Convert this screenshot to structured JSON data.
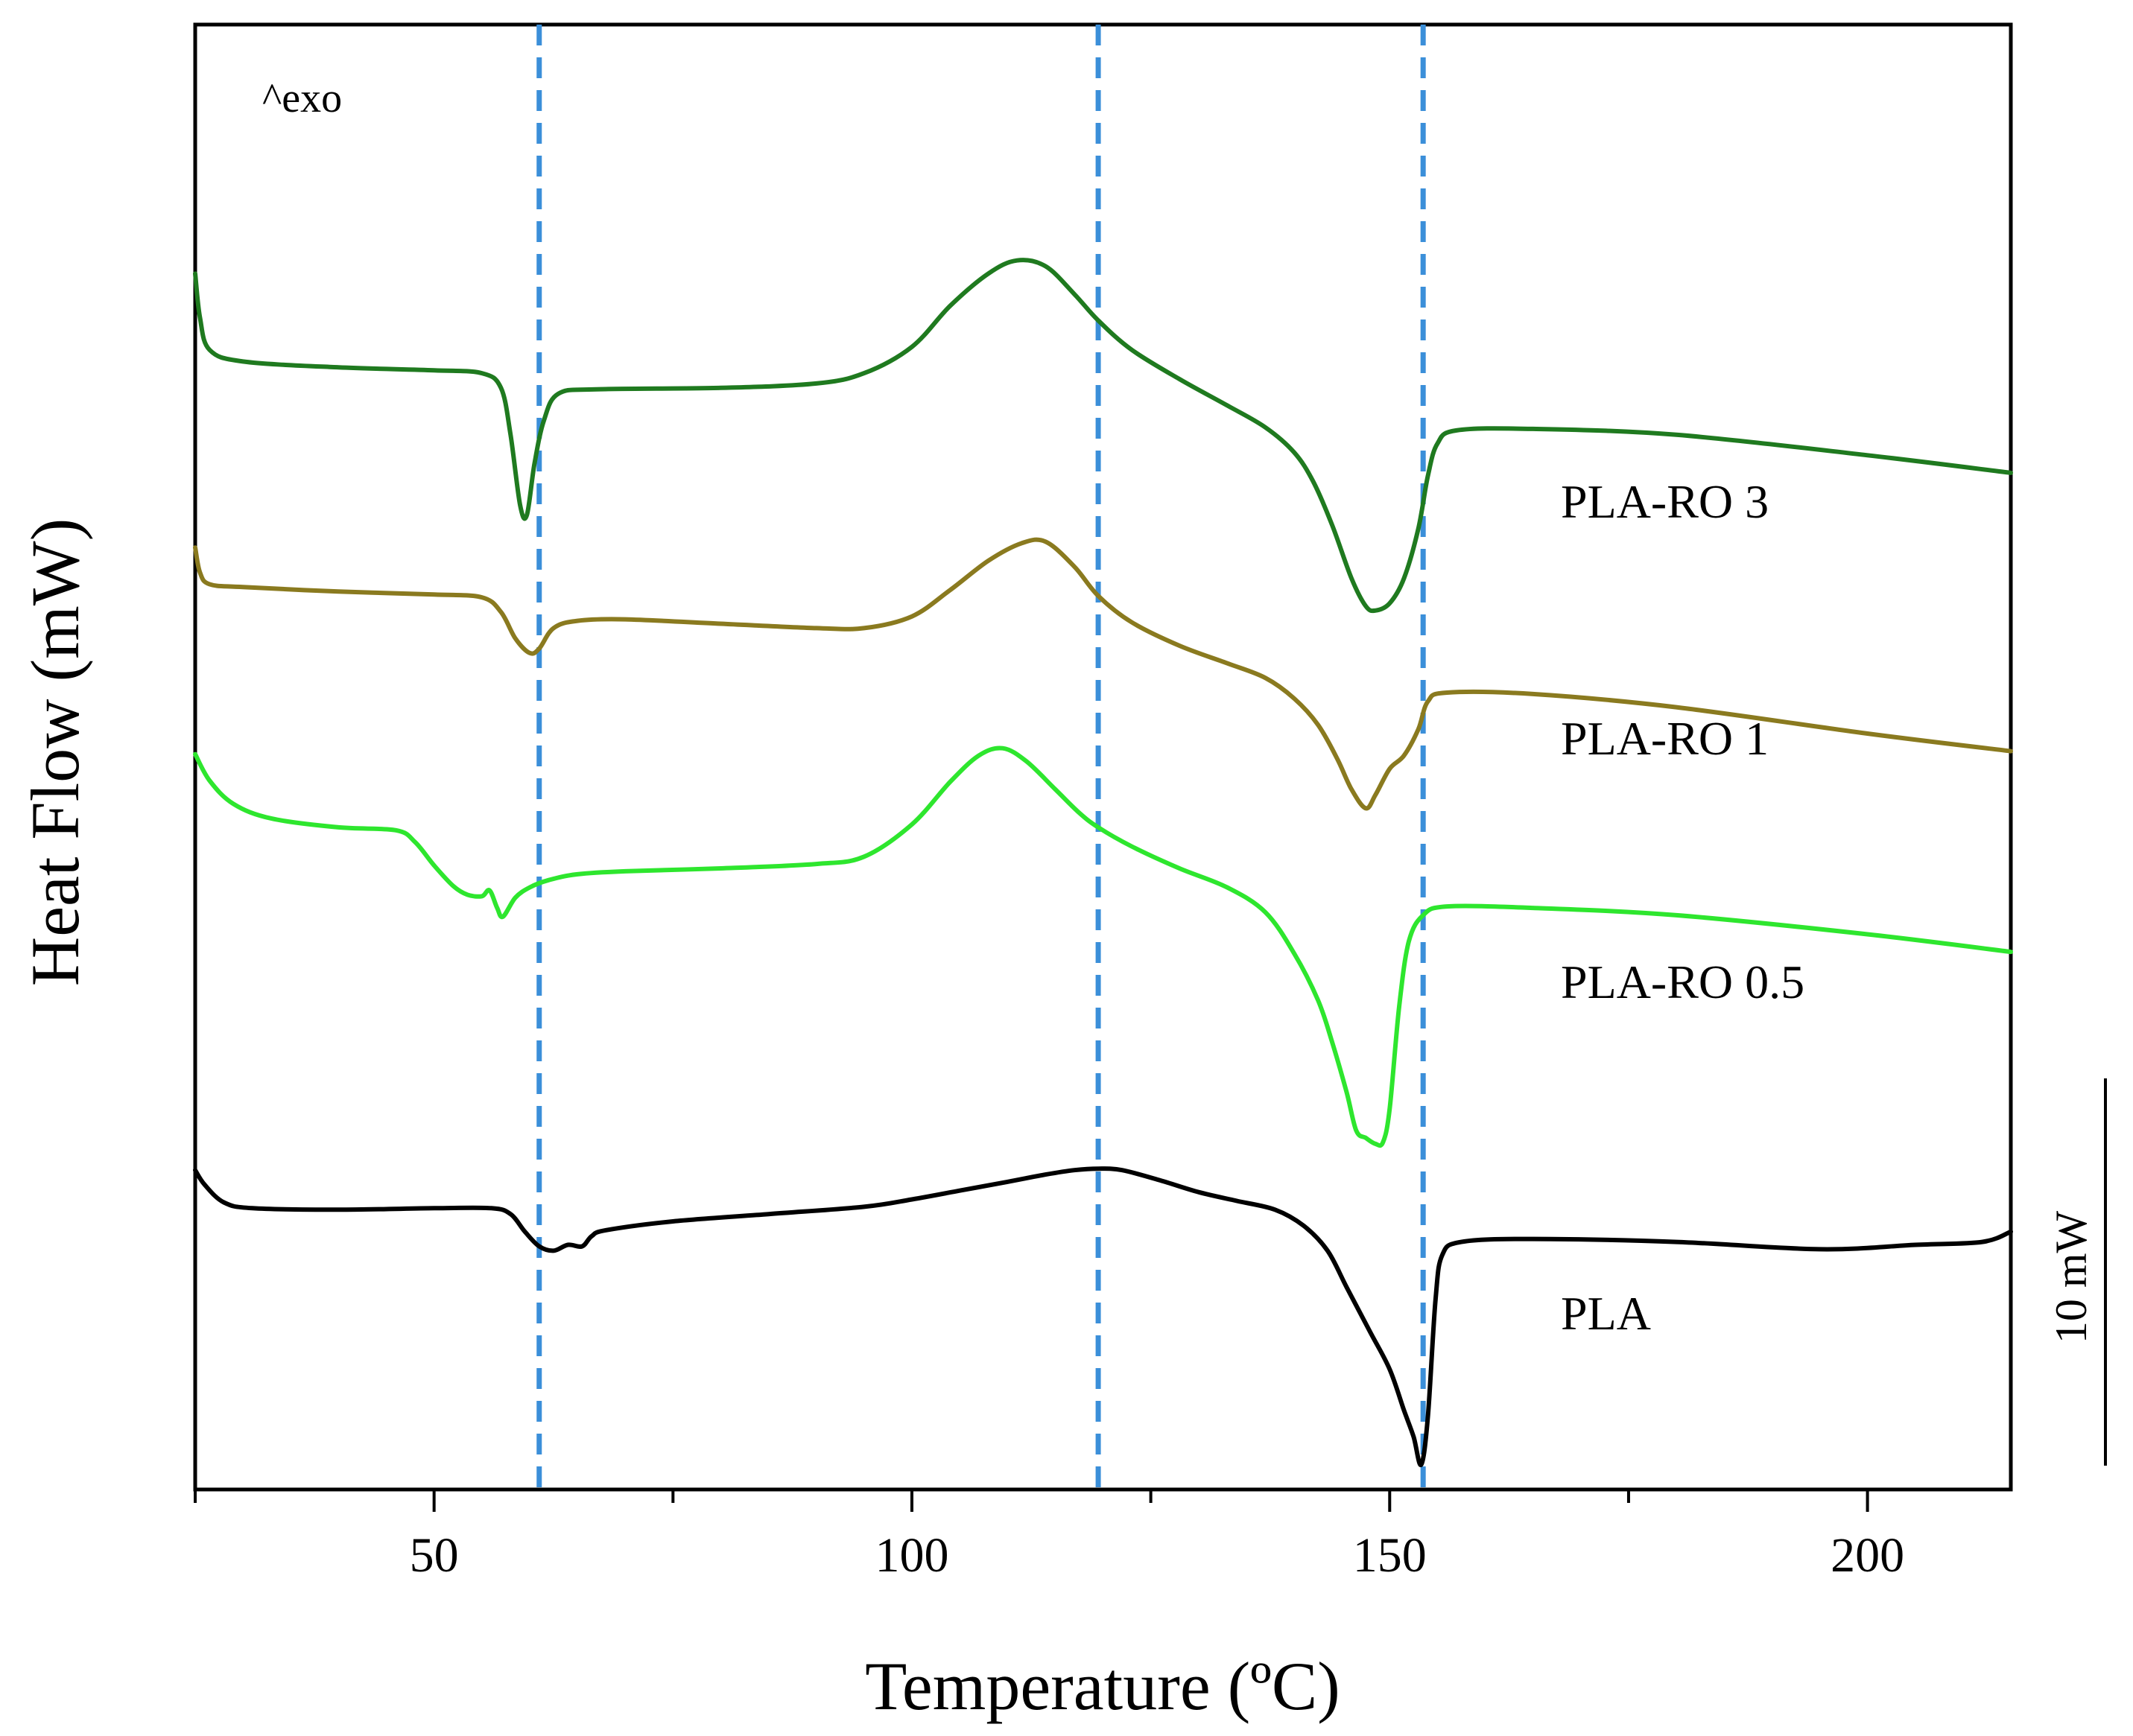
{
  "chart_data": {
    "type": "line",
    "title": "",
    "xlabel": "Temperature (ºC)",
    "ylabel": "Heat Flow (mW)",
    "xlim": [
      25,
      215
    ],
    "ylim": [
      0,
      100
    ],
    "xticks": [
      50,
      100,
      150,
      200
    ],
    "xtick_labels": [
      "50",
      "100",
      "150",
      "200"
    ],
    "annotation_exo": "^exo",
    "scale_bar_label": "10 mW",
    "scale_bar_value_mW": 10,
    "reference_lines_x": [
      61,
      119.5,
      153.5
    ],
    "reference_line_color": "#3b8fd9",
    "series": [
      {
        "name": "PLA-RO 3",
        "label": "PLA-RO 3",
        "color": "#1f7a1f",
        "points": [
          [
            25,
            83.0
          ],
          [
            25.5,
            80.0
          ],
          [
            26.5,
            77.8
          ],
          [
            30,
            77.0
          ],
          [
            40,
            76.6
          ],
          [
            50,
            76.4
          ],
          [
            55,
            76.2
          ],
          [
            57,
            75.2
          ],
          [
            58,
            72.0
          ],
          [
            59,
            67.2
          ],
          [
            59.7,
            66.5
          ],
          [
            60.5,
            70.0
          ],
          [
            61.5,
            73.0
          ],
          [
            63,
            74.8
          ],
          [
            67,
            75.1
          ],
          [
            80,
            75.2
          ],
          [
            90,
            75.5
          ],
          [
            95,
            76.2
          ],
          [
            100,
            78.0
          ],
          [
            104,
            80.8
          ],
          [
            108,
            83.0
          ],
          [
            111,
            83.9
          ],
          [
            114,
            83.5
          ],
          [
            117,
            81.6
          ],
          [
            119.5,
            79.8
          ],
          [
            123,
            77.8
          ],
          [
            128,
            75.8
          ],
          [
            133,
            74.0
          ],
          [
            137,
            72.5
          ],
          [
            140,
            70.8
          ],
          [
            142,
            68.8
          ],
          [
            144,
            65.8
          ],
          [
            146,
            62.2
          ],
          [
            147.5,
            60.3
          ],
          [
            148.5,
            60.0
          ],
          [
            150,
            60.5
          ],
          [
            151.5,
            62.2
          ],
          [
            153,
            65.6
          ],
          [
            154,
            69.2
          ],
          [
            155,
            71.4
          ],
          [
            157,
            72.3
          ],
          [
            165,
            72.4
          ],
          [
            180,
            72.0
          ],
          [
            200,
            70.6
          ],
          [
            215,
            69.4
          ]
        ]
      },
      {
        "name": "PLA-RO 1",
        "label": "PLA-RO 1",
        "color": "#8a7a1f",
        "points": [
          [
            25,
            64.3
          ],
          [
            25.5,
            62.6
          ],
          [
            26.5,
            61.8
          ],
          [
            30,
            61.6
          ],
          [
            40,
            61.3
          ],
          [
            50,
            61.1
          ],
          [
            55,
            60.9
          ],
          [
            57,
            59.9
          ],
          [
            58.5,
            58.1
          ],
          [
            60,
            57.1
          ],
          [
            61,
            57.4
          ],
          [
            62.5,
            58.8
          ],
          [
            65,
            59.3
          ],
          [
            70,
            59.4
          ],
          [
            80,
            59.1
          ],
          [
            90,
            58.8
          ],
          [
            95,
            58.8
          ],
          [
            100,
            59.6
          ],
          [
            104,
            61.4
          ],
          [
            108,
            63.4
          ],
          [
            111.5,
            64.6
          ],
          [
            114,
            64.7
          ],
          [
            117,
            63.0
          ],
          [
            119.5,
            61.0
          ],
          [
            123,
            59.2
          ],
          [
            128,
            57.6
          ],
          [
            133,
            56.4
          ],
          [
            137,
            55.4
          ],
          [
            140,
            54.0
          ],
          [
            142.5,
            52.2
          ],
          [
            144.5,
            49.9
          ],
          [
            146,
            47.8
          ],
          [
            147.5,
            46.5
          ],
          [
            148.5,
            47.4
          ],
          [
            150,
            49.2
          ],
          [
            151.5,
            50.1
          ],
          [
            153,
            51.9
          ],
          [
            154,
            53.8
          ],
          [
            156,
            54.4
          ],
          [
            165,
            54.3
          ],
          [
            180,
            53.4
          ],
          [
            200,
            51.6
          ],
          [
            215,
            50.4
          ]
        ]
      },
      {
        "name": "PLA-RO 0.5",
        "label": "PLA-RO 0.5",
        "color": "#2ee62e",
        "points": [
          [
            25,
            50.2
          ],
          [
            26.5,
            48.4
          ],
          [
            29,
            46.8
          ],
          [
            33,
            45.8
          ],
          [
            40,
            45.2
          ],
          [
            46,
            45.0
          ],
          [
            48,
            44.2
          ],
          [
            50,
            42.6
          ],
          [
            52,
            41.2
          ],
          [
            53.5,
            40.6
          ],
          [
            55,
            40.5
          ],
          [
            55.8,
            40.9
          ],
          [
            56.6,
            39.7
          ],
          [
            57.2,
            39.1
          ],
          [
            58.5,
            40.4
          ],
          [
            60,
            41.1
          ],
          [
            62,
            41.6
          ],
          [
            65,
            42.0
          ],
          [
            70,
            42.2
          ],
          [
            80,
            42.4
          ],
          [
            90,
            42.7
          ],
          [
            95,
            43.2
          ],
          [
            100,
            45.4
          ],
          [
            104,
            48.3
          ],
          [
            107,
            50.1
          ],
          [
            109.5,
            50.6
          ],
          [
            112,
            49.7
          ],
          [
            115,
            47.8
          ],
          [
            117.5,
            46.2
          ],
          [
            119.5,
            45.2
          ],
          [
            123,
            43.9
          ],
          [
            128,
            42.4
          ],
          [
            133,
            41.1
          ],
          [
            137,
            39.4
          ],
          [
            140,
            36.6
          ],
          [
            142.5,
            33.4
          ],
          [
            144,
            30.5
          ],
          [
            145.5,
            27.1
          ],
          [
            146.5,
            24.5
          ],
          [
            147.5,
            24.0
          ],
          [
            148.5,
            23.6
          ],
          [
            149.3,
            23.7
          ],
          [
            150,
            26.0
          ],
          [
            151,
            33.0
          ],
          [
            152,
            37.4
          ],
          [
            153.5,
            39.2
          ],
          [
            156,
            39.8
          ],
          [
            165,
            39.7
          ],
          [
            180,
            39.2
          ],
          [
            200,
            37.9
          ],
          [
            215,
            36.7
          ]
        ]
      },
      {
        "name": "PLA",
        "label": "PLA",
        "color": "#000000",
        "points": [
          [
            25,
            21.8
          ],
          [
            26,
            20.8
          ],
          [
            28,
            19.6
          ],
          [
            31,
            19.2
          ],
          [
            40,
            19.1
          ],
          [
            50,
            19.2
          ],
          [
            56,
            19.2
          ],
          [
            58,
            18.8
          ],
          [
            59.5,
            17.6
          ],
          [
            61,
            16.6
          ],
          [
            62.5,
            16.3
          ],
          [
            64,
            16.7
          ],
          [
            65.5,
            16.6
          ],
          [
            66.5,
            17.3
          ],
          [
            68,
            17.7
          ],
          [
            75,
            18.3
          ],
          [
            85,
            18.8
          ],
          [
            95,
            19.3
          ],
          [
            100,
            19.8
          ],
          [
            105,
            20.4
          ],
          [
            110,
            21.0
          ],
          [
            114,
            21.5
          ],
          [
            117,
            21.8
          ],
          [
            119.5,
            21.9
          ],
          [
            122,
            21.8
          ],
          [
            126,
            21.1
          ],
          [
            130,
            20.3
          ],
          [
            134,
            19.7
          ],
          [
            138,
            19.1
          ],
          [
            141,
            18.0
          ],
          [
            143.5,
            16.3
          ],
          [
            145.5,
            13.8
          ],
          [
            148,
            10.7
          ],
          [
            150,
            8.2
          ],
          [
            151.5,
            5.4
          ],
          [
            152.5,
            3.6
          ],
          [
            153.3,
            1.7
          ],
          [
            154,
            5.0
          ],
          [
            154.8,
            13.0
          ],
          [
            155.5,
            16.0
          ],
          [
            157.5,
            16.9
          ],
          [
            165,
            17.1
          ],
          [
            180,
            16.9
          ],
          [
            195,
            16.4
          ],
          [
            205,
            16.7
          ],
          [
            212,
            16.9
          ],
          [
            215,
            17.6
          ]
        ]
      }
    ],
    "legend_placement": "inline labels to the right of each curve"
  }
}
